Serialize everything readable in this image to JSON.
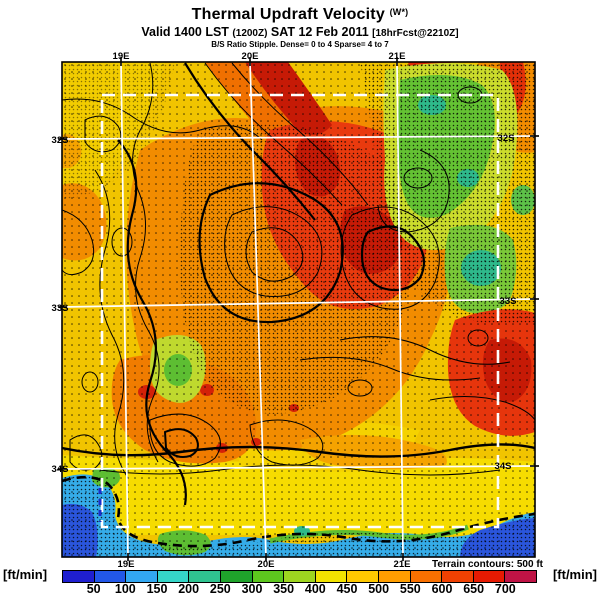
{
  "header": {
    "title": "Thermal Updraft Velocity",
    "title_suffix": "(W*)",
    "valid": {
      "p1": "Valid 1400 LST",
      "p2": "(1200Z)",
      "p3": "SAT 12 Feb 2011",
      "p4": "[18hrFcst@2210Z]"
    },
    "stipple_line": "B/S Ratio Stipple.  Dense= 0 to 4  Sparse= 4 to 7"
  },
  "map": {
    "top_lon_labels": [
      "19E",
      "20E",
      "21E"
    ],
    "bottom_lon_labels": [
      "19E",
      "20E",
      "21E"
    ],
    "left_lat_labels": [
      "32S",
      "33S",
      "34S"
    ],
    "right_lat_labels": [
      "32S",
      "33S",
      "34S"
    ]
  },
  "footer": {
    "left_units": "[ft/min]",
    "right_units": "[ft/min]",
    "terrain_note": "Terrain contours: 500 ft"
  },
  "chart_data": {
    "type": "heatmap",
    "title": "Thermal Updraft Velocity (W*)",
    "subtitle": "Valid 1400 LST (1200Z) SAT 12 Feb 2011 [18hrFcst@2210Z]",
    "stipple_legend": {
      "dense_range": "0 to 4",
      "sparse_range": "4 to 7",
      "quantity": "B/S Ratio"
    },
    "units": "ft/min",
    "terrain_contour_interval": "500 ft",
    "colorbar": {
      "orientation": "horizontal",
      "tick_values": [
        50,
        100,
        150,
        200,
        250,
        300,
        350,
        400,
        450,
        500,
        550,
        600,
        650,
        700
      ],
      "segment_colors": [
        "#1F1FD0",
        "#2257E8",
        "#32A7F2",
        "#35D6C8",
        "#2FC490",
        "#1FA32B",
        "#5DC71E",
        "#9ED520",
        "#F2E300",
        "#FFC900",
        "#FF9E00",
        "#F97000",
        "#F04102",
        "#E61A02",
        "#BF1345"
      ]
    },
    "graticule": {
      "longitudes_deg_east": [
        19,
        20,
        21
      ],
      "latitudes_deg_south": [
        32,
        33,
        34
      ]
    },
    "map_region_colors": {
      "land_base_gold": "#F1C400",
      "land_yellow": "#F6DC00",
      "updraft_orange": "#F28C00",
      "updraft_red": "#E93A0E",
      "updraft_dark_red": "#C61A06",
      "weak_green": "#5DBE32",
      "weak_teal": "#2EB98B",
      "sea_cyan": "#35ACE8",
      "sea_blue": "#2A55DC"
    }
  }
}
